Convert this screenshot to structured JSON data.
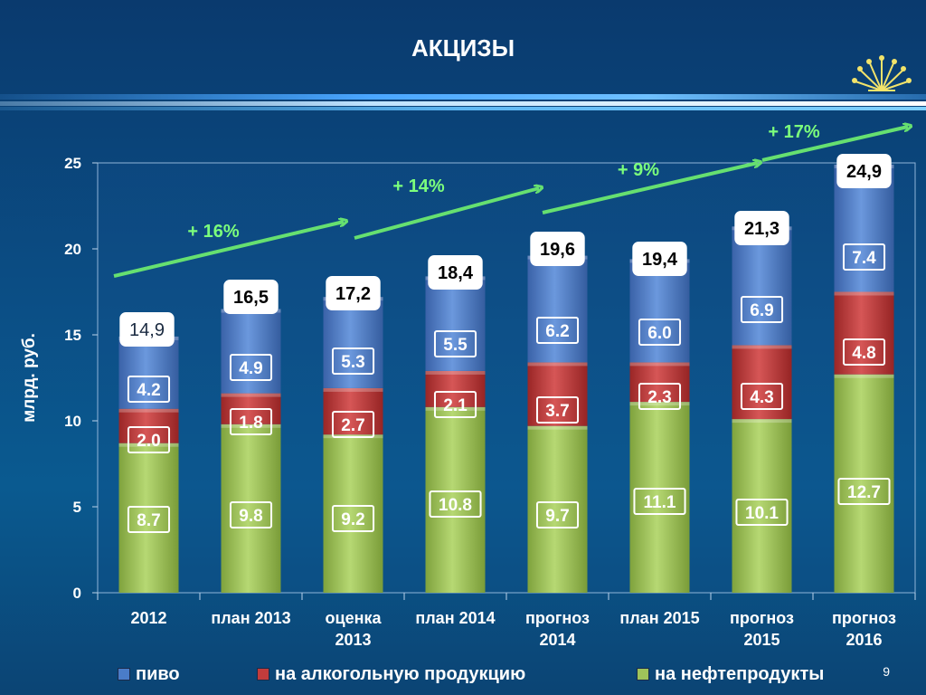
{
  "slide": {
    "title": "АКЦИЗЫ",
    "page_number": "9"
  },
  "colors": {
    "beer": "#4a7cc8",
    "alcohol": "#c23c3c",
    "oil": "#9fc35a",
    "arrow": "#66e070",
    "growth_text": "#7cff7c"
  },
  "chart_data": {
    "type": "bar",
    "stacked": true,
    "ylabel": "млрд. руб.",
    "ylim": [
      0,
      25
    ],
    "yticks": [
      0,
      5,
      10,
      15,
      20,
      25
    ],
    "categories": [
      "2012",
      "план 2013",
      "оценка 2013",
      "план 2014",
      "прогноз 2014",
      "план 2015",
      "прогноз 2015",
      "прогноз 2016"
    ],
    "category_lines": [
      [
        "2012"
      ],
      [
        "план 2013"
      ],
      [
        "оценка",
        "2013"
      ],
      [
        "план 2014"
      ],
      [
        "прогноз",
        "2014"
      ],
      [
        "план 2015"
      ],
      [
        "прогноз",
        "2015"
      ],
      [
        "прогноз",
        "2016"
      ]
    ],
    "series": [
      {
        "name": "на нефтепродукты",
        "key": "oil",
        "values": [
          8.7,
          9.8,
          9.2,
          10.8,
          9.7,
          11.1,
          10.1,
          12.7
        ]
      },
      {
        "name": "на алкогольную продукцию",
        "key": "alcohol",
        "values": [
          2.0,
          1.8,
          2.7,
          2.1,
          3.7,
          2.3,
          4.3,
          4.8
        ]
      },
      {
        "name": "пиво",
        "key": "beer",
        "values": [
          4.2,
          4.9,
          5.3,
          5.5,
          6.2,
          6.0,
          6.9,
          7.4
        ]
      }
    ],
    "segment_labels": [
      {
        "oil": "8.7",
        "alcohol": "2.0",
        "beer": "4.2"
      },
      {
        "oil": "9.8",
        "alcohol": "1.8",
        "beer": "4.9"
      },
      {
        "oil": "9.2",
        "alcohol": "2.7",
        "beer": "5.3"
      },
      {
        "oil": "10.8",
        "alcohol": "2.1",
        "beer": "5.5"
      },
      {
        "oil": "9.7",
        "alcohol": "3.7",
        "beer": "6.2"
      },
      {
        "oil": "11.1",
        "alcohol": "2.3",
        "beer": "6.0"
      },
      {
        "oil": "10.1",
        "alcohol": "4.3",
        "beer": "6.9"
      },
      {
        "oil": "12.7",
        "alcohol": "4.8",
        "beer": "7.4"
      }
    ],
    "totals": [
      "14,9",
      "16,5",
      "17,2",
      "18,4",
      "19,6",
      "19,4",
      "21,3",
      "24,9"
    ],
    "growth_annotations": [
      {
        "text": "+ 16%",
        "from_year": "2012",
        "to_year": "2013"
      },
      {
        "text": "+ 14%",
        "from_year": "2013",
        "to_year": "2014"
      },
      {
        "text": "+ 9%",
        "from_year": "2014",
        "to_year": "2015"
      },
      {
        "text": "+ 17%",
        "from_year": "2015",
        "to_year": "2016"
      }
    ],
    "legend": [
      {
        "key": "beer",
        "label": "пиво"
      },
      {
        "key": "alcohol",
        "label": "на алкогольную продукцию"
      },
      {
        "key": "oil",
        "label": "на нефтепродукты"
      }
    ],
    "legend_position": "bottom",
    "grid": false
  },
  "icons": {
    "logo": "kurai-flower-logo-icon"
  }
}
